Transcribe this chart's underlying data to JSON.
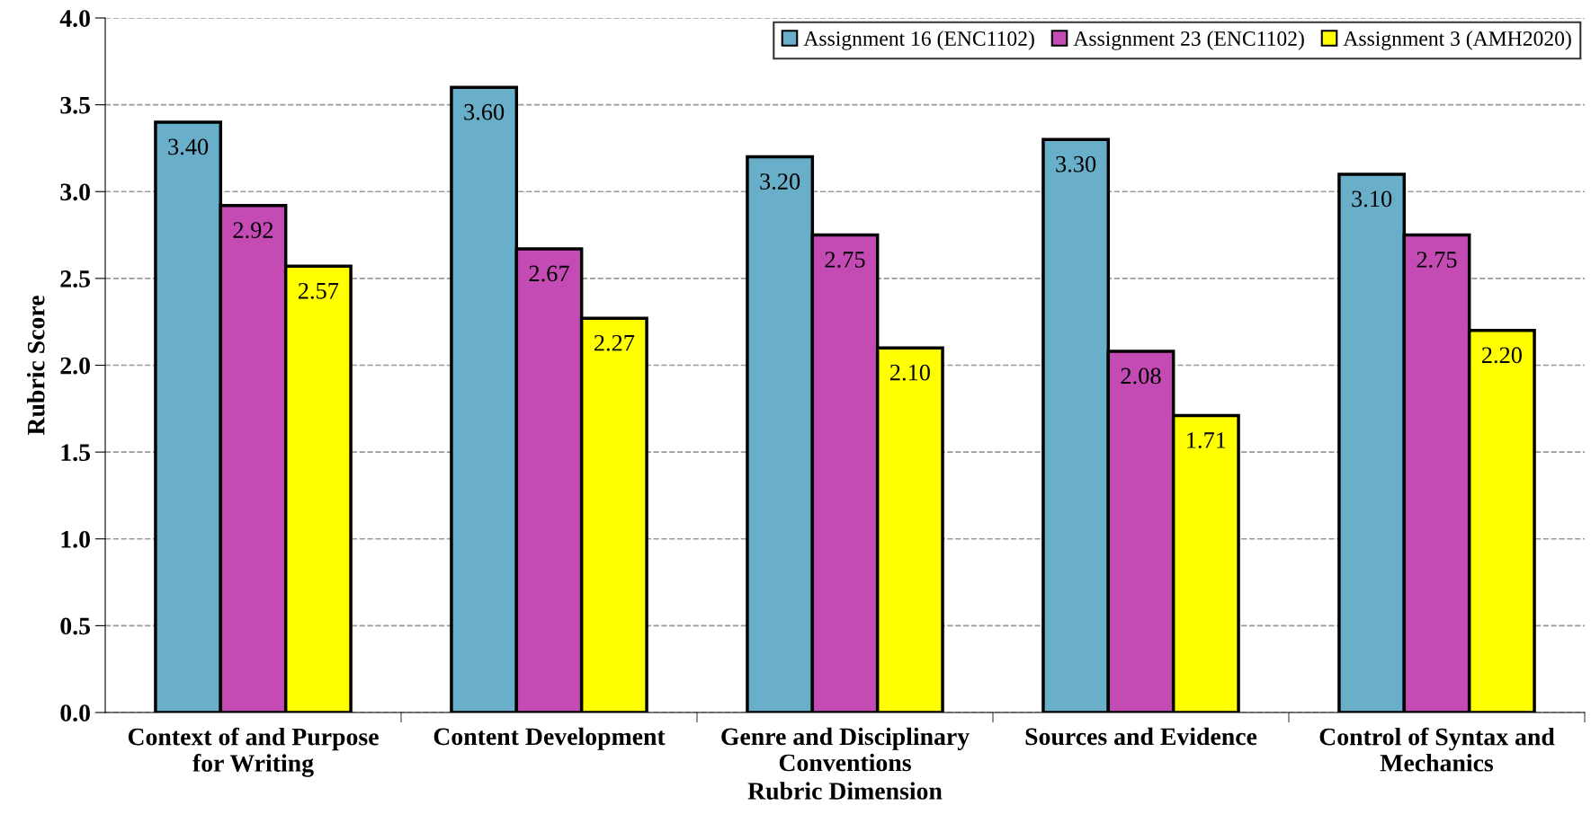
{
  "chart_data": {
    "type": "bar",
    "xlabel": "Rubric Dimension",
    "ylabel": "Rubric Score",
    "categories": [
      "Context of and Purpose\nfor Writing",
      "Content Development",
      "Genre and Disciplinary\nConventions",
      "Sources and Evidence",
      "Control of Syntax and\nMechanics"
    ],
    "series": [
      {
        "name": "Assignment 16 (ENC1102)",
        "color": "#6aafc9",
        "values": [
          3.4,
          3.6,
          3.2,
          3.3,
          3.1
        ],
        "value_labels": [
          "3.40",
          "3.60",
          "3.20",
          "3.30",
          "3.10"
        ]
      },
      {
        "name": "Assignment 23 (ENC1102)",
        "color": "#c44ab4",
        "values": [
          2.92,
          2.67,
          2.75,
          2.08,
          2.75
        ],
        "value_labels": [
          "2.92",
          "2.67",
          "2.75",
          "2.08",
          "2.75"
        ]
      },
      {
        "name": "Assignment 3 (AMH2020)",
        "color": "#ffff00",
        "values": [
          2.57,
          2.27,
          2.1,
          1.71,
          2.2
        ],
        "value_labels": [
          "2.57",
          "2.27",
          "2.10",
          "1.71",
          "2.20"
        ]
      }
    ],
    "ylim": [
      0,
      4
    ],
    "yticks": [
      {
        "value": 0,
        "label": "0.0"
      },
      {
        "value": 0.5,
        "label": "0.5"
      },
      {
        "value": 1,
        "label": "1.0"
      },
      {
        "value": 1.5,
        "label": "1.5"
      },
      {
        "value": 2,
        "label": "2.0"
      },
      {
        "value": 2.5,
        "label": "2.5"
      },
      {
        "value": 3,
        "label": "3.0"
      },
      {
        "value": 3.5,
        "label": "3.5"
      },
      {
        "value": 4,
        "label": "4.0"
      }
    ],
    "grid": "y",
    "legend": "top right"
  }
}
